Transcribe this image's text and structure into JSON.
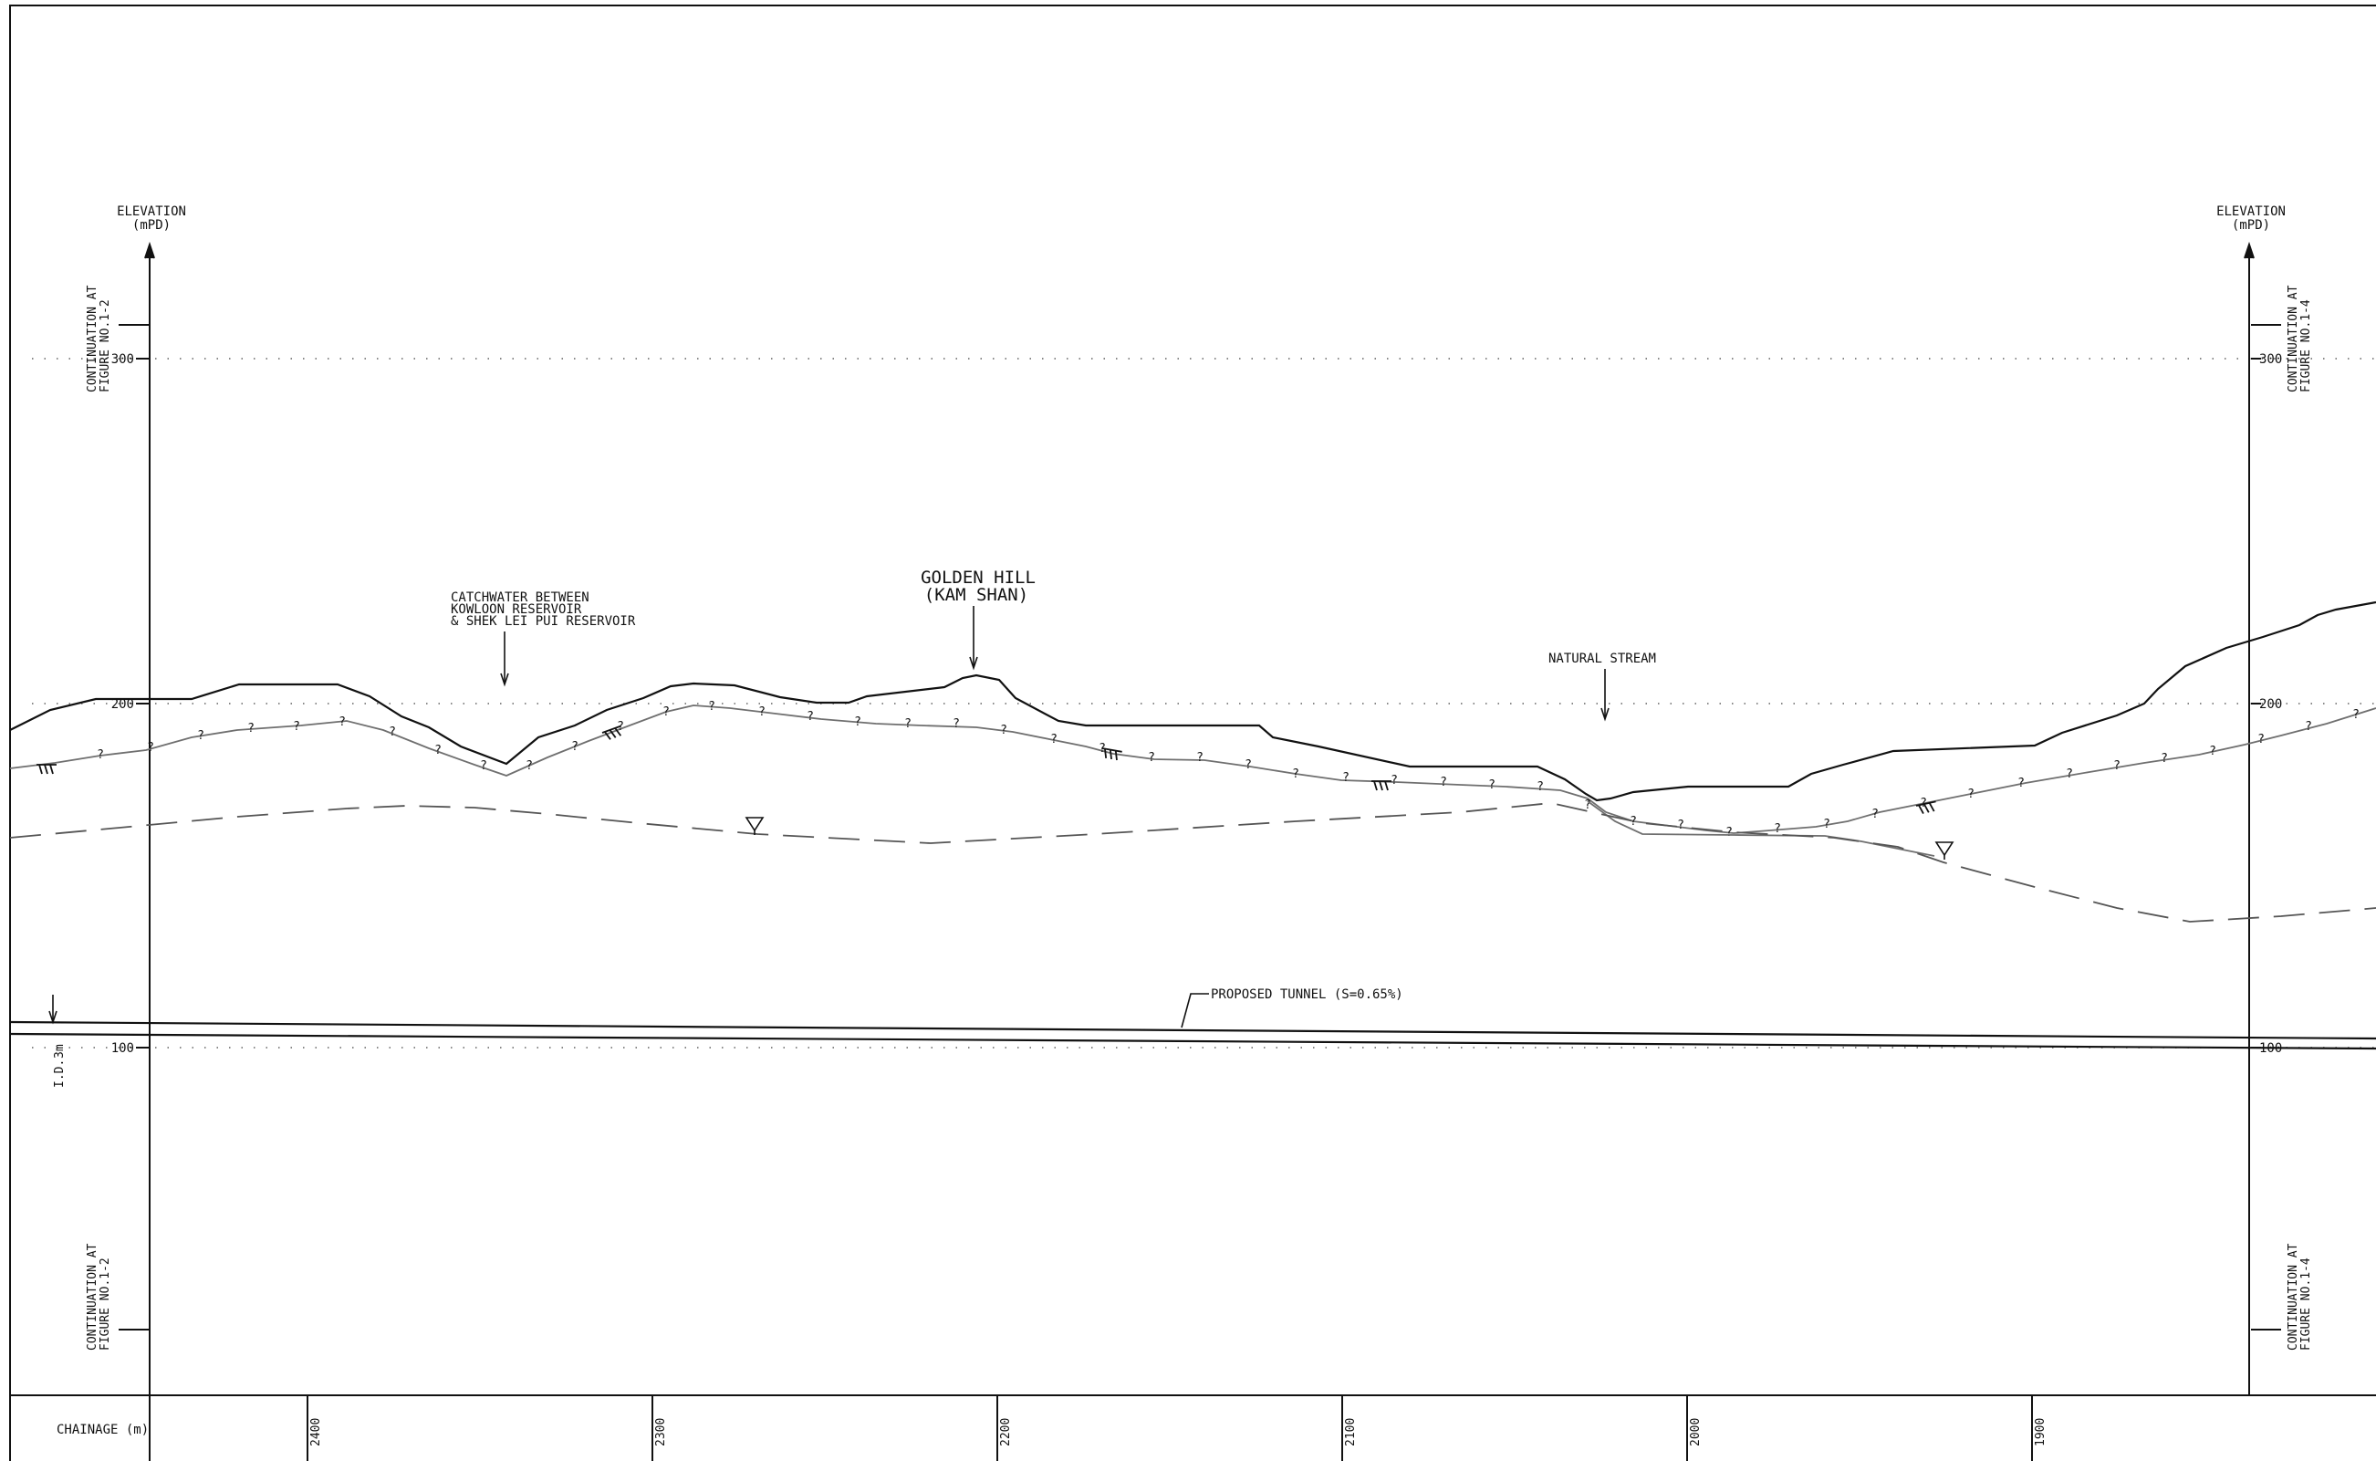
{
  "axis": {
    "title_line1": "ELEVATION",
    "title_line2": "(mPD)",
    "levels": [
      "300",
      "200",
      "100"
    ]
  },
  "continuation": {
    "left_line1": "CONTINUATION AT",
    "left_line2": "FIGURE NO.1-2",
    "right_line1": "CONTINUATION AT",
    "right_line2": "FIGURE NO.1-4"
  },
  "annotations": {
    "catchwater_1": "CATCHWATER BETWEEN",
    "catchwater_2": "KOWLOON RESERVOIR",
    "catchwater_3": "& SHEK LEI PUI RESERVOIR",
    "golden_hill_1": "GOLDEN HILL",
    "golden_hill_2": "(KAM SHAN)",
    "natural_stream": "NATURAL STREAM",
    "tunnel": "PROPOSED TUNNEL (S=0.65%)",
    "diameter_1": "3m",
    "diameter_2": "I.D."
  },
  "chainage": {
    "label": "CHAINAGE (m)",
    "values": [
      "2400",
      "2300",
      "2200",
      "2100",
      "2000",
      "1900"
    ]
  },
  "colors": {
    "line": "#111111",
    "rock": "#6f6f6f",
    "water": "#555555",
    "grid": "#888888"
  }
}
